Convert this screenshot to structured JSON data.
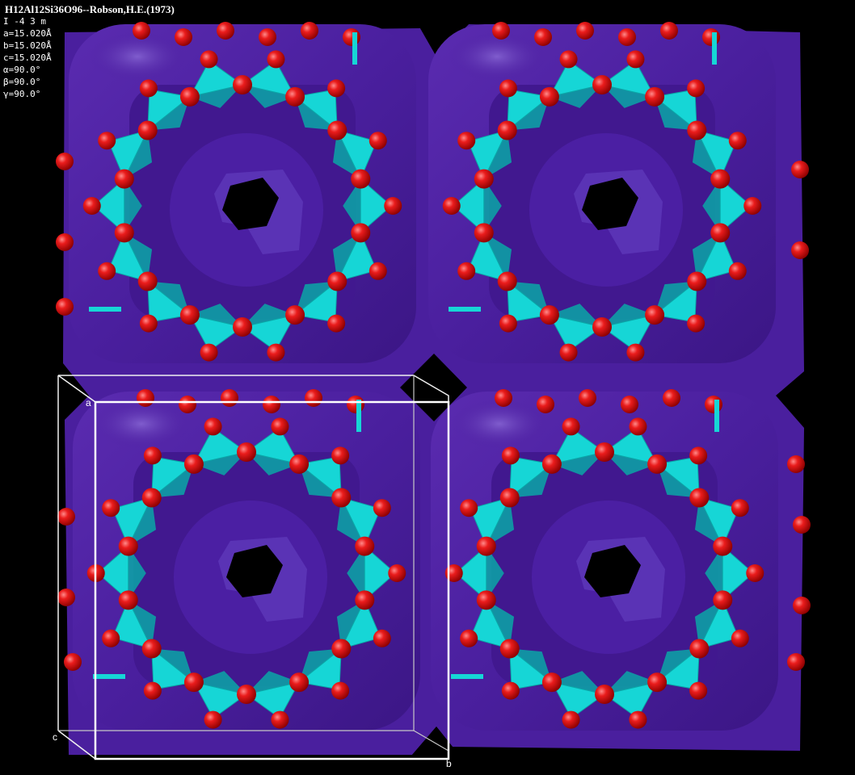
{
  "window": {
    "title": "H12Al12Si36O96--Robson,H.E.(1973)"
  },
  "cell_parameters": [
    "I -4 3 m",
    "a=15.020Å",
    "b=15.020Å",
    "c=15.020Å",
    "α=90.0°",
    "β=90.0°",
    "γ=90.0°"
  ],
  "axes": {
    "a": "a",
    "b": "b",
    "c": "c"
  },
  "colors": {
    "background": "#000000",
    "framework_surface": "#4a1f9e",
    "framework_highlight": "#6a45c0",
    "tetrahedra": "#16d6d6",
    "tetrahedra_dark": "#0aa7a7",
    "oxygen_atoms": "#e01010",
    "unit_cell_outline": "#ffffff"
  },
  "icons": {
    "structure": "crystal-structure-icon"
  }
}
